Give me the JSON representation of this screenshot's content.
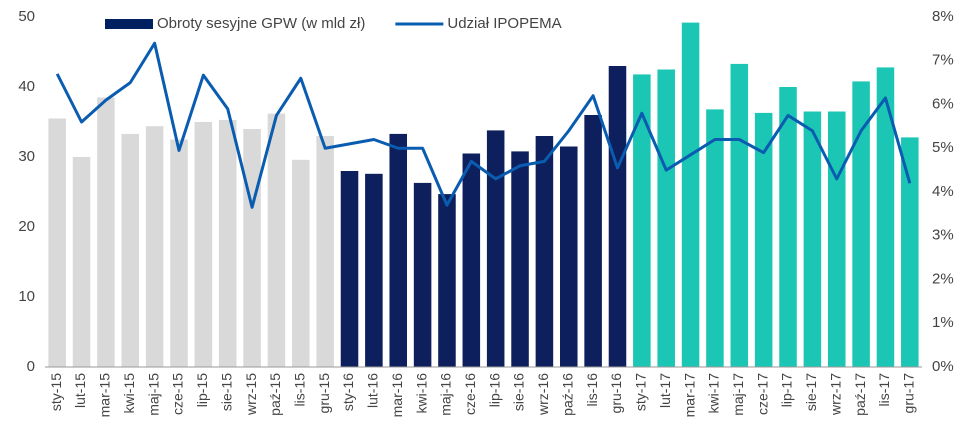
{
  "chart_data": {
    "type": "bar_line",
    "categories": [
      "sty-15",
      "lut-15",
      "mar-15",
      "kwi-15",
      "maj-15",
      "cze-15",
      "lip-15",
      "sie-15",
      "wrz-15",
      "paź-15",
      "lis-15",
      "gru-15",
      "sty-16",
      "lut-16",
      "mar-16",
      "kwi-16",
      "maj-16",
      "cze-16",
      "lip-16",
      "sie-16",
      "wrz-16",
      "paź-16",
      "lis-16",
      "gru-16",
      "sty-17",
      "lut-17",
      "mar-17",
      "kwi-17",
      "maj-17",
      "cze-17",
      "lip-17",
      "sie-17",
      "wrz-17",
      "paź-17",
      "lis-17",
      "gru-17"
    ],
    "series": [
      {
        "name": "Obroty sesyjne GPW (w mld zł)",
        "type": "bar",
        "color": "#002060",
        "colors": [
          "#d9d9d9",
          "#d9d9d9",
          "#d9d9d9",
          "#d9d9d9",
          "#d9d9d9",
          "#d9d9d9",
          "#d9d9d9",
          "#d9d9d9",
          "#d9d9d9",
          "#d9d9d9",
          "#d9d9d9",
          "#d9d9d9",
          "#0d1f5c",
          "#0d1f5c",
          "#0d1f5c",
          "#0d1f5c",
          "#0d1f5c",
          "#0d1f5c",
          "#0d1f5c",
          "#0d1f5c",
          "#0d1f5c",
          "#0d1f5c",
          "#0d1f5c",
          "#0d1f5c",
          "#1cc6b4",
          "#1cc6b4",
          "#1cc6b4",
          "#1cc6b4",
          "#1cc6b4",
          "#1cc6b4",
          "#1cc6b4",
          "#1cc6b4",
          "#1cc6b4",
          "#1cc6b4",
          "#1cc6b4",
          "#1cc6b4"
        ],
        "values": [
          35.5,
          30,
          38.5,
          33.3,
          34.4,
          32.5,
          35,
          35.3,
          34,
          36.2,
          29.6,
          33,
          28,
          27.6,
          33.3,
          26.3,
          24.7,
          30.5,
          33.8,
          30.8,
          33,
          31.5,
          36,
          43,
          41.8,
          42.5,
          49.2,
          36.8,
          43.3,
          36.3,
          40,
          36.5,
          36.5,
          40.8,
          42.8,
          32.8
        ]
      },
      {
        "name": "Udział IPOPEMA",
        "type": "line",
        "axis": "y2",
        "color": "#0a5cb0",
        "values": [
          6.7,
          5.6,
          6.1,
          6.5,
          7.4,
          4.95,
          6.67,
          5.9,
          3.65,
          5.75,
          6.6,
          5.0,
          5.1,
          5.2,
          5.0,
          5.0,
          3.7,
          4.7,
          4.3,
          4.6,
          4.7,
          5.4,
          6.2,
          4.55,
          5.8,
          4.5,
          4.85,
          5.2,
          5.2,
          4.9,
          5.75,
          5.4,
          4.3,
          5.4,
          6.15,
          4.2
        ]
      }
    ],
    "ylim": [
      0,
      50
    ],
    "yticks": [
      0,
      10,
      20,
      30,
      40,
      50
    ],
    "y2lim": [
      0,
      8
    ],
    "y2ticks": [
      {
        "value": 0,
        "label": "0%"
      },
      {
        "value": 1,
        "label": "1%"
      },
      {
        "value": 2,
        "label": "2%"
      },
      {
        "value": 3,
        "label": "3%"
      },
      {
        "value": 4,
        "label": "4%"
      },
      {
        "value": 5,
        "label": "5%"
      },
      {
        "value": 6,
        "label": "6%"
      },
      {
        "value": 7,
        "label": "7%"
      },
      {
        "value": 8,
        "label": "8%"
      }
    ],
    "grid": false,
    "legend": "top"
  }
}
